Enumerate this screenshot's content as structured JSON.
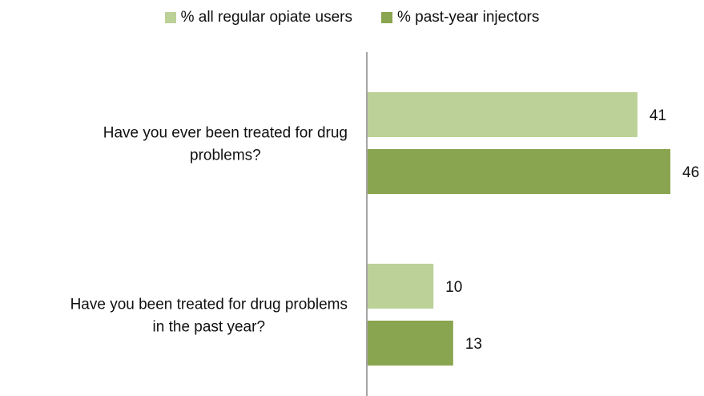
{
  "chart_data": {
    "type": "bar",
    "orientation": "horizontal",
    "categories": [
      [
        "Have you ever been treated for drug",
        "problems?"
      ],
      [
        "Have you been treated for drug problems",
        "in the past year?"
      ]
    ],
    "series": [
      {
        "name": "% all regular opiate users",
        "values": [
          41,
          10
        ],
        "color": "#bcd198"
      },
      {
        "name": "% past-year injectors",
        "values": [
          46,
          13
        ],
        "color": "#8aa54f"
      }
    ],
    "xlim": [
      0,
      46
    ],
    "legend_position": "top",
    "grid": false,
    "data_labels": true
  }
}
